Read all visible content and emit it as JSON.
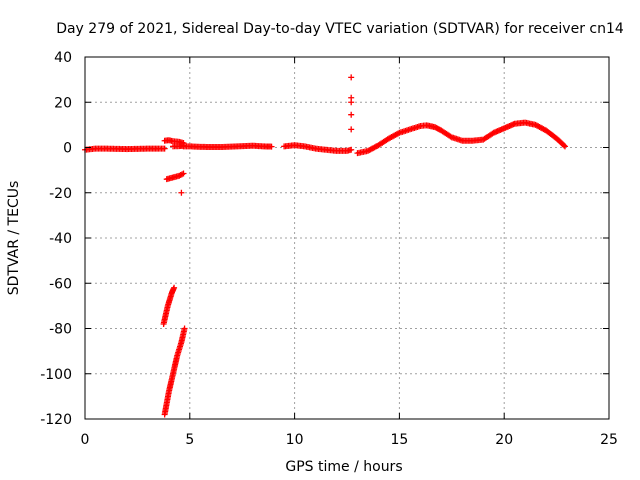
{
  "chart_data": {
    "type": "scatter",
    "title": "Day 279 of 2021, Sidereal Day-to-day VTEC variation (SDTVAR) for receiver cn14",
    "xlabel": "GPS time / hours",
    "ylabel": "SDTVAR / TECUs",
    "xlim": [
      0,
      25
    ],
    "ylim": [
      -120,
      40
    ],
    "xticks": [
      0,
      5,
      10,
      15,
      20,
      25
    ],
    "yticks": [
      -120,
      -100,
      -80,
      -60,
      -40,
      -20,
      0,
      20,
      40
    ],
    "grid": true,
    "marker": "+",
    "color": "#ff0000",
    "series": [
      {
        "name": "SDTVAR",
        "segments": [
          {
            "x": [
              0,
              0.5,
              1,
              1.5,
              2,
              2.5,
              3,
              3.5,
              3.8
            ],
            "y": [
              -1,
              -0.5,
              -0.5,
              -0.6,
              -0.7,
              -0.6,
              -0.5,
              -0.5,
              -0.5
            ]
          },
          {
            "x": [
              3.8,
              4.0,
              4.2,
              4.5,
              4.7
            ],
            "y": [
              3,
              3.2,
              2.8,
              2.5,
              2.0
            ]
          },
          {
            "x": [
              4.2,
              4.5,
              4.7
            ],
            "y": [
              0.5,
              0.6,
              0.8
            ]
          },
          {
            "x": [
              3.9,
              4.1,
              4.3,
              4.5,
              4.7
            ],
            "y": [
              -14,
              -13.5,
              -13,
              -12.5,
              -11.5
            ]
          },
          {
            "x": [
              3.75,
              3.85,
              3.95,
              4.05,
              4.15,
              4.25
            ],
            "y": [
              -78,
              -74,
              -70,
              -67,
              -64,
              -62
            ]
          },
          {
            "x": [
              3.8,
              4.0,
              4.2,
              4.4,
              4.6,
              4.75
            ],
            "y": [
              -118,
              -108,
              -100,
              -92,
              -86,
              -80
            ]
          },
          {
            "x": [
              4.7,
              5.0,
              5.5,
              6.0,
              6.5,
              7.0,
              7.5,
              8.0,
              8.5,
              8.9
            ],
            "y": [
              0.5,
              0.5,
              0.3,
              0.2,
              0.2,
              0.4,
              0.6,
              0.8,
              0.5,
              0.4
            ]
          },
          {
            "x": [
              9.5,
              10.0,
              10.5,
              11.0,
              11.5,
              12.0,
              12.5,
              12.7
            ],
            "y": [
              0.5,
              1.0,
              0.5,
              -0.5,
              -1.0,
              -1.5,
              -1.5,
              -1.0
            ]
          },
          {
            "x": [
              13.0,
              13.5,
              14.0,
              14.5,
              15.0,
              15.5,
              16.0,
              16.3,
              16.7,
              17.0,
              17.5,
              18.0,
              18.5,
              19.0,
              19.5,
              20.0,
              20.5,
              21.0,
              21.5,
              22.0,
              22.5,
              22.9
            ],
            "y": [
              -2.5,
              -1.5,
              1.0,
              4.0,
              6.5,
              8.0,
              9.5,
              9.8,
              9.0,
              7.5,
              4.5,
              3.0,
              3.0,
              3.5,
              6.5,
              8.5,
              10.5,
              11.0,
              10.0,
              7.5,
              4.0,
              0.5
            ]
          }
        ],
        "outliers": {
          "x": [
            4.6,
            12.7,
            12.7,
            12.7,
            12.7,
            12.7
          ],
          "y": [
            -20,
            31,
            22,
            20,
            14.5,
            8
          ]
        }
      }
    ]
  }
}
